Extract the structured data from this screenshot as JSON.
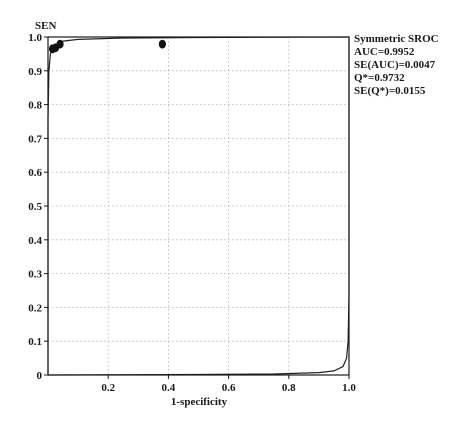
{
  "chart_data": {
    "type": "scatter",
    "title": "",
    "xlabel": "1-specificity",
    "ylabel": "SEN",
    "xlim": [
      0,
      1
    ],
    "ylim": [
      0,
      1
    ],
    "x_ticks": [
      "0.2",
      "0.4",
      "0.6",
      "0.8",
      "1.0"
    ],
    "y_ticks": [
      "0",
      "0.1",
      "0.2",
      "0.3",
      "0.4",
      "0.5",
      "0.6",
      "0.7",
      "0.8",
      "0.9",
      "1.0"
    ],
    "grid": true,
    "points": [
      {
        "x": 0.015,
        "y": 0.965
      },
      {
        "x": 0.025,
        "y": 0.968
      },
      {
        "x": 0.04,
        "y": 0.979
      },
      {
        "x": 0.38,
        "y": 0.979
      }
    ],
    "sroc_curve": [
      [
        0.0,
        0.0
      ],
      [
        0.0,
        0.76
      ],
      [
        0.003,
        0.9
      ],
      [
        0.008,
        0.95
      ],
      [
        0.02,
        0.975
      ],
      [
        0.05,
        0.988
      ],
      [
        0.1,
        0.993
      ],
      [
        0.25,
        0.997
      ],
      [
        0.5,
        0.9985
      ],
      [
        1.0,
        1.0
      ]
    ],
    "sroc_curve_symmetric": [
      [
        0.0,
        0.0
      ],
      [
        0.5,
        0.0015
      ],
      [
        0.75,
        0.003
      ],
      [
        0.9,
        0.007
      ],
      [
        0.95,
        0.012
      ],
      [
        0.98,
        0.025
      ],
      [
        0.992,
        0.05
      ],
      [
        0.997,
        0.1
      ],
      [
        1.0,
        0.24
      ],
      [
        1.0,
        1.0
      ]
    ],
    "stats": [
      "Symmetric SROC",
      "AUC=0.9952",
      "SE(AUC)=0.0047",
      "Q*=0.9732",
      "SE(Q*)=0.0155"
    ],
    "colors": {
      "axis": "#1a1a1a",
      "grid": "#b0b0b0",
      "curve": "#222222",
      "point": "#111111"
    }
  }
}
